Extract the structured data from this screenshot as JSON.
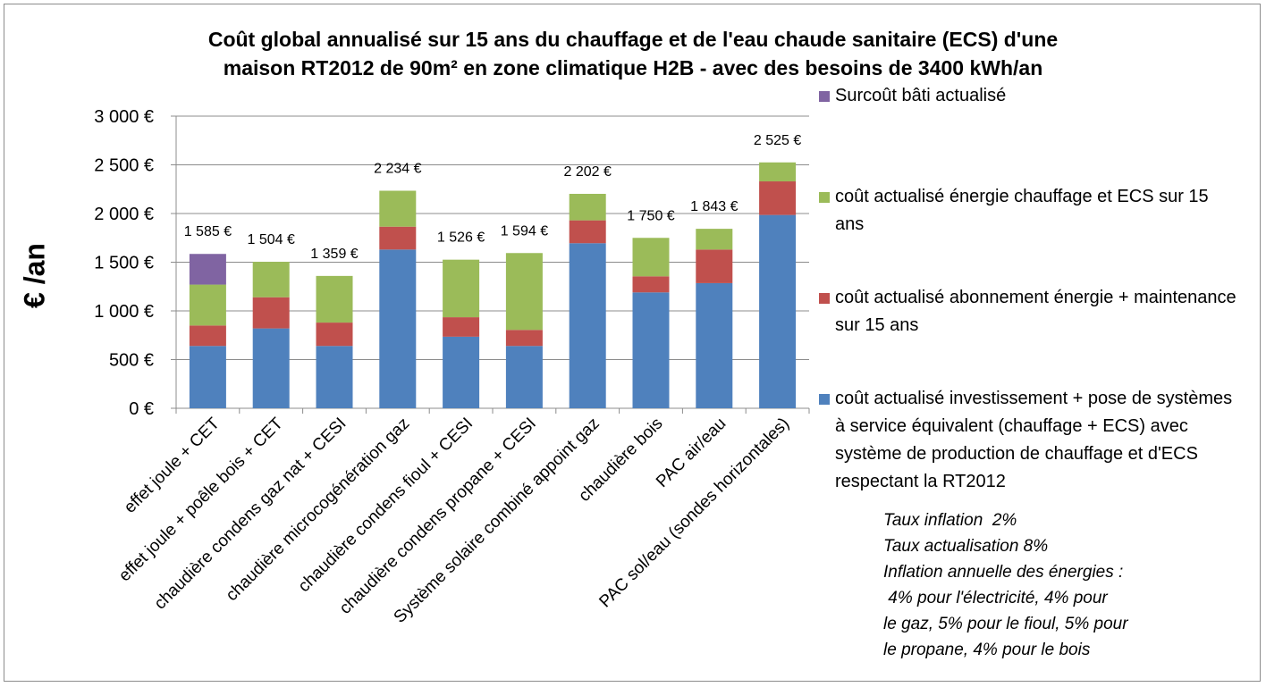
{
  "chart_data": {
    "type": "bar",
    "stacked": true,
    "title": [
      "Coût global annualisé sur 15 ans du chauffage et de l'eau chaude sanitaire (ECS) d'une",
      "maison RT2012 de 90m² en zone climatique H2B - avec des besoins de 3400 kWh/an"
    ],
    "ylabel": "€ /an",
    "xlabel": "",
    "ylim": [
      0,
      3000
    ],
    "yticks": [
      0,
      500,
      1000,
      1500,
      2000,
      2500,
      3000
    ],
    "ytick_labels": [
      "0 €",
      "500 €",
      "1 000 €",
      "1 500 €",
      "2 000 €",
      "2 500 €",
      "3 000 €"
    ],
    "grid": true,
    "legend_position": "right",
    "categories": [
      "effet joule + CET",
      "effet joule + poêle bois + CET",
      "chaudière condens gaz nat + CESI",
      "chaudière microcogénération gaz",
      "chaudière condens fioul + CESI",
      "chaudière condens propane + CESI",
      "Système solaire combiné appoint gaz",
      "chaudière bois",
      "PAC air/eau",
      "PAC sol/eau (sondes horizontales)"
    ],
    "series": [
      {
        "name": "coût actualisé investissement + pose de systèmes à service équivalent (chauffage + ECS) avec système de production de chauffage et d'ECS respectant la RT2012",
        "color": "#4f81bd",
        "values": [
          640,
          820,
          640,
          1630,
          735,
          640,
          1695,
          1190,
          1285,
          1985
        ]
      },
      {
        "name": "coût actualisé abonnement énergie + maintenance sur 15 ans",
        "color": "#c0504d",
        "values": [
          210,
          320,
          240,
          235,
          200,
          165,
          235,
          165,
          345,
          345
        ]
      },
      {
        "name": "coût actualisé énergie chauffage et ECS sur 15 ans",
        "color": "#9bbb59",
        "values": [
          420,
          364,
          479,
          369,
          591,
          789,
          272,
          395,
          213,
          195
        ]
      },
      {
        "name": "Surcoût bâti actualisé",
        "color": "#8064a2",
        "values": [
          315,
          0,
          0,
          0,
          0,
          0,
          0,
          0,
          0,
          0
        ]
      }
    ],
    "totals": [
      1585,
      1504,
      1359,
      2234,
      1526,
      1594,
      2202,
      1750,
      1843,
      2525
    ],
    "total_labels": [
      "1 585 €",
      "1 504 €",
      "1 359 €",
      "2 234 €",
      "1 526 €",
      "1 594 €",
      "2 202 €",
      "1 750 €",
      "1 843 €",
      "2 525 €"
    ]
  },
  "legend": {
    "items": [
      {
        "text": "Surcoût bâti actualisé",
        "color": "#8064a2"
      },
      {
        "text": "coût actualisé énergie chauffage et ECS sur 15 ans",
        "color": "#9bbb59"
      },
      {
        "text": "coût actualisé abonnement énergie + maintenance sur 15 ans",
        "color": "#c0504d"
      },
      {
        "text": "coût actualisé investissement + pose de systèmes à service équivalent (chauffage + ECS) avec système de production de chauffage et d'ECS respectant la RT2012",
        "color": "#4f81bd"
      }
    ]
  },
  "notes": {
    "lines": [
      "Taux inflation  2%",
      "Taux actualisation 8%",
      "Inflation annuelle des énergies :",
      " 4% pour l'électricité, 4% pour",
      "le gaz, 5% pour le fioul, 5% pour",
      "le propane, 4% pour le bois"
    ]
  }
}
